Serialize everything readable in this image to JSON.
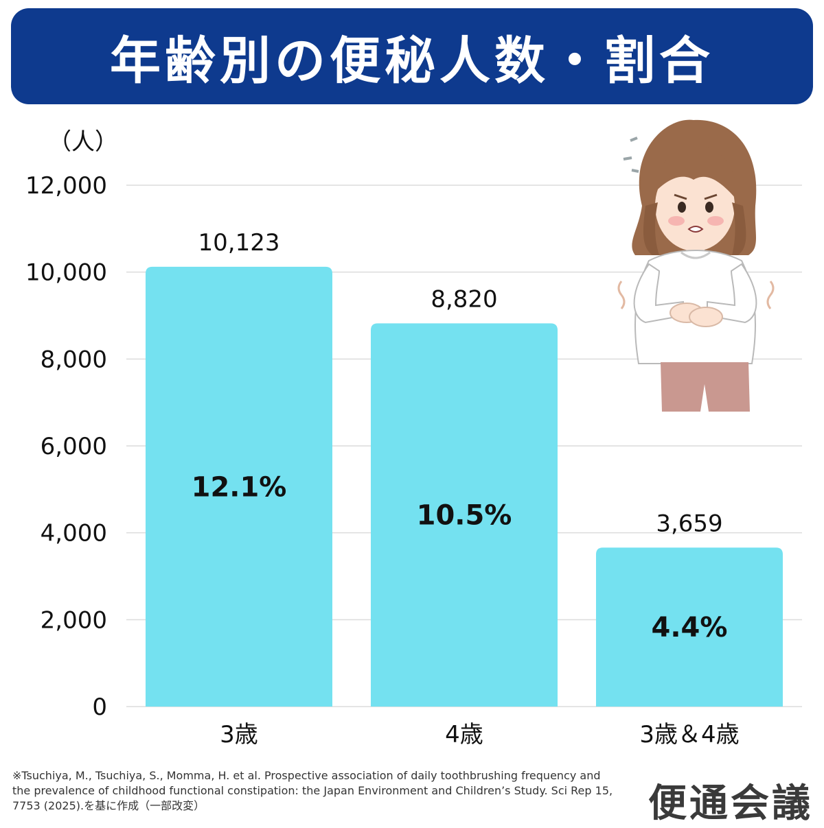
{
  "colors": {
    "banner": "#0e3a8e",
    "bar": "#74e1f0",
    "grid": "#dcdcdc"
  },
  "title": "年齢別の便秘人数・割合",
  "footnote": "※Tsuchiya, M., Tsuchiya, S., Momma, H. et al. Prospective association of daily toothbrushing frequency and the prevalence of childhood functional constipation: the Japan Environment and Children’s Study. Sci Rep 15, 7753 (2025).を基に作成（一部改変）",
  "brand": "便通会議",
  "illustration": "woman-holding-stomach-icon",
  "chart_data": {
    "type": "bar",
    "y_unit_label": "（人）",
    "ylim": [
      0,
      12000
    ],
    "yticks": [
      0,
      2000,
      4000,
      6000,
      8000,
      10000,
      12000
    ],
    "ytick_labels": [
      "0",
      "2,000",
      "4,000",
      "6,000",
      "8,000",
      "10,000",
      "12,000"
    ],
    "grid": true,
    "categories": [
      "3歳",
      "4歳",
      "3歳＆4歳"
    ],
    "values": [
      10123,
      8820,
      3659
    ],
    "value_labels": [
      "10,123",
      "8,820",
      "3,659"
    ],
    "percent_labels": [
      "12.1%",
      "10.5%",
      "4.4%"
    ]
  }
}
